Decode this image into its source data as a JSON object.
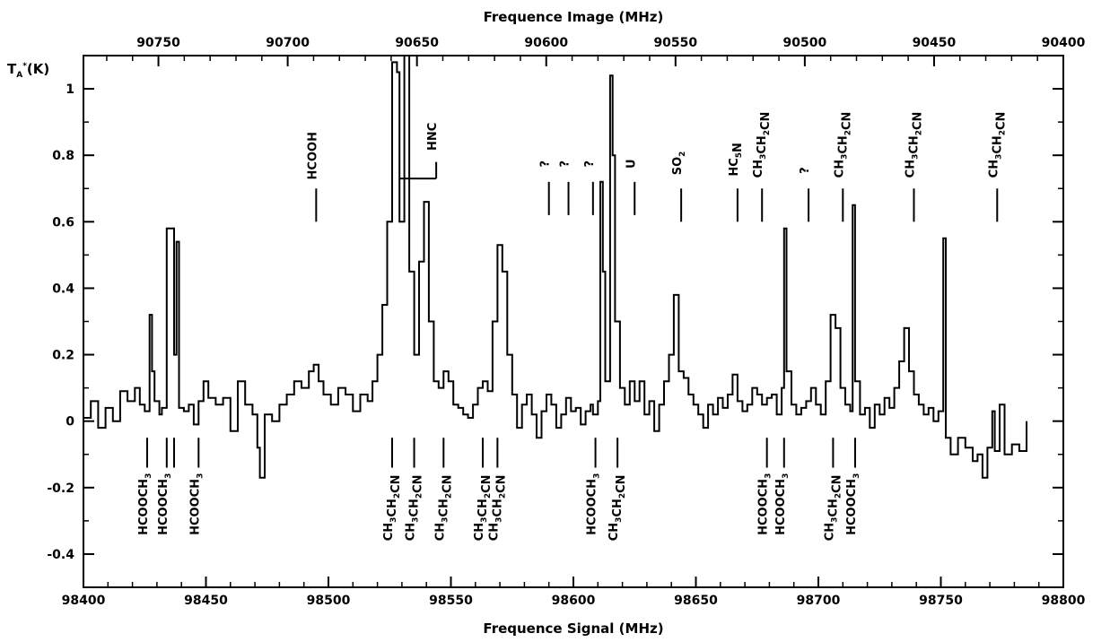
{
  "chart_data": {
    "type": "line",
    "xlabel": "Frequence Signal (MHz)",
    "x2label": "Frequence Image (MHz)",
    "ylabel": "T_A*(K)",
    "xlim": [
      98400,
      98800
    ],
    "x2lim": [
      90779,
      90400
    ],
    "ylim": [
      -0.5,
      1.1
    ],
    "grid": false,
    "x_ticks": [
      98400,
      98450,
      98500,
      98550,
      98600,
      98650,
      98700,
      98750,
      98800
    ],
    "x2_ticks": [
      90750,
      90700,
      90650,
      90600,
      90550,
      90500,
      90450,
      90400
    ],
    "y_ticks": [
      -0.4,
      -0.2,
      0,
      0.2,
      0.4,
      0.6,
      0.8,
      1
    ],
    "y_tick_labels": [
      "-0.4",
      "-0.2",
      "0",
      "0.2",
      "0.4",
      "0.6",
      "0.8",
      "1"
    ],
    "series": [
      {
        "values": [
          [
            98400,
            0.01
          ],
          [
            98403,
            0.06
          ],
          [
            98406,
            -0.02
          ],
          [
            98409,
            0.04
          ],
          [
            98412,
            0.0
          ],
          [
            98415,
            0.09
          ],
          [
            98418,
            0.06
          ],
          [
            98421,
            0.1
          ],
          [
            98423,
            0.05
          ],
          [
            98425,
            0.03
          ],
          [
            98427,
            0.32
          ],
          [
            98428,
            0.15
          ],
          [
            98429,
            0.06
          ],
          [
            98431,
            0.02
          ],
          [
            98432,
            0.04
          ],
          [
            98434,
            0.58
          ],
          [
            98436,
            0.58
          ],
          [
            98437,
            0.2
          ],
          [
            98438,
            0.54
          ],
          [
            98439,
            0.04
          ],
          [
            98441,
            0.03
          ],
          [
            98443,
            0.05
          ],
          [
            98445,
            -0.01
          ],
          [
            98447,
            0.06
          ],
          [
            98449,
            0.12
          ],
          [
            98451,
            0.07
          ],
          [
            98454,
            0.05
          ],
          [
            98457,
            0.07
          ],
          [
            98460,
            -0.03
          ],
          [
            98463,
            0.12
          ],
          [
            98466,
            0.05
          ],
          [
            98469,
            0.02
          ],
          [
            98471,
            -0.08
          ],
          [
            98472,
            -0.17
          ],
          [
            98474,
            0.02
          ],
          [
            98477,
            0.0
          ],
          [
            98480,
            0.05
          ],
          [
            98483,
            0.08
          ],
          [
            98486,
            0.12
          ],
          [
            98489,
            0.1
          ],
          [
            98492,
            0.15
          ],
          [
            98494,
            0.17
          ],
          [
            98496,
            0.12
          ],
          [
            98498,
            0.08
          ],
          [
            98501,
            0.05
          ],
          [
            98504,
            0.1
          ],
          [
            98507,
            0.08
          ],
          [
            98510,
            0.03
          ],
          [
            98513,
            0.08
          ],
          [
            98516,
            0.06
          ],
          [
            98518,
            0.12
          ],
          [
            98520,
            0.2
          ],
          [
            98522,
            0.35
          ],
          [
            98524,
            0.6
          ],
          [
            98526,
            1.08
          ],
          [
            98528,
            1.05
          ],
          [
            98529,
            0.6
          ],
          [
            98531,
            1.1
          ],
          [
            98533,
            0.45
          ],
          [
            98535,
            0.2
          ],
          [
            98537,
            0.48
          ],
          [
            98539,
            0.66
          ],
          [
            98541,
            0.3
          ],
          [
            98543,
            0.12
          ],
          [
            98545,
            0.1
          ],
          [
            98547,
            0.15
          ],
          [
            98549,
            0.12
          ],
          [
            98551,
            0.05
          ],
          [
            98553,
            0.04
          ],
          [
            98555,
            0.02
          ],
          [
            98557,
            0.01
          ],
          [
            98559,
            0.05
          ],
          [
            98561,
            0.1
          ],
          [
            98563,
            0.12
          ],
          [
            98565,
            0.09
          ],
          [
            98567,
            0.3
          ],
          [
            98569,
            0.53
          ],
          [
            98571,
            0.45
          ],
          [
            98573,
            0.2
          ],
          [
            98575,
            0.08
          ],
          [
            98577,
            -0.02
          ],
          [
            98579,
            0.05
          ],
          [
            98581,
            0.08
          ],
          [
            98583,
            0.02
          ],
          [
            98585,
            -0.05
          ],
          [
            98587,
            0.03
          ],
          [
            98589,
            0.08
          ],
          [
            98591,
            0.05
          ],
          [
            98593,
            -0.02
          ],
          [
            98595,
            0.02
          ],
          [
            98597,
            0.07
          ],
          [
            98599,
            0.03
          ],
          [
            98601,
            0.04
          ],
          [
            98603,
            -0.01
          ],
          [
            98605,
            0.03
          ],
          [
            98607,
            0.05
          ],
          [
            98608,
            0.02
          ],
          [
            98610,
            0.06
          ],
          [
            98611,
            0.72
          ],
          [
            98612,
            0.45
          ],
          [
            98613,
            0.12
          ],
          [
            98615,
            1.04
          ],
          [
            98616,
            0.8
          ],
          [
            98617,
            0.3
          ],
          [
            98619,
            0.1
          ],
          [
            98621,
            0.05
          ],
          [
            98623,
            0.12
          ],
          [
            98625,
            0.06
          ],
          [
            98627,
            0.12
          ],
          [
            98629,
            0.02
          ],
          [
            98631,
            0.06
          ],
          [
            98633,
            -0.03
          ],
          [
            98635,
            0.05
          ],
          [
            98637,
            0.12
          ],
          [
            98639,
            0.2
          ],
          [
            98641,
            0.38
          ],
          [
            98643,
            0.15
          ],
          [
            98645,
            0.13
          ],
          [
            98647,
            0.08
          ],
          [
            98649,
            0.05
          ],
          [
            98651,
            0.02
          ],
          [
            98653,
            -0.02
          ],
          [
            98655,
            0.05
          ],
          [
            98657,
            0.02
          ],
          [
            98659,
            0.07
          ],
          [
            98661,
            0.04
          ],
          [
            98663,
            0.08
          ],
          [
            98665,
            0.14
          ],
          [
            98667,
            0.06
          ],
          [
            98669,
            0.03
          ],
          [
            98671,
            0.05
          ],
          [
            98673,
            0.1
          ],
          [
            98675,
            0.08
          ],
          [
            98677,
            0.05
          ],
          [
            98679,
            0.07
          ],
          [
            98681,
            0.08
          ],
          [
            98683,
            0.02
          ],
          [
            98685,
            0.1
          ],
          [
            98686,
            0.58
          ],
          [
            98687,
            0.15
          ],
          [
            98689,
            0.05
          ],
          [
            98691,
            0.02
          ],
          [
            98693,
            0.04
          ],
          [
            98695,
            0.06
          ],
          [
            98697,
            0.1
          ],
          [
            98699,
            0.05
          ],
          [
            98701,
            0.02
          ],
          [
            98703,
            0.12
          ],
          [
            98705,
            0.32
          ],
          [
            98707,
            0.28
          ],
          [
            98709,
            0.1
          ],
          [
            98711,
            0.05
          ],
          [
            98713,
            0.03
          ],
          [
            98714,
            0.65
          ],
          [
            98715,
            0.12
          ],
          [
            98717,
            0.02
          ],
          [
            98719,
            0.04
          ],
          [
            98721,
            -0.02
          ],
          [
            98723,
            0.05
          ],
          [
            98725,
            0.02
          ],
          [
            98727,
            0.07
          ],
          [
            98729,
            0.04
          ],
          [
            98731,
            0.1
          ],
          [
            98733,
            0.18
          ],
          [
            98735,
            0.28
          ],
          [
            98737,
            0.15
          ],
          [
            98739,
            0.08
          ],
          [
            98741,
            0.05
          ],
          [
            98743,
            0.02
          ],
          [
            98745,
            0.04
          ],
          [
            98747,
            0.0
          ],
          [
            98749,
            0.03
          ],
          [
            98751,
            0.55
          ],
          [
            98752,
            -0.05
          ],
          [
            98754,
            -0.1
          ],
          [
            98757,
            -0.05
          ],
          [
            98760,
            -0.08
          ],
          [
            98763,
            -0.12
          ],
          [
            98765,
            -0.1
          ],
          [
            98767,
            -0.17
          ],
          [
            98769,
            -0.08
          ],
          [
            98771,
            0.03
          ],
          [
            98772,
            -0.09
          ],
          [
            98774,
            0.05
          ],
          [
            98776,
            -0.1
          ],
          [
            98779,
            -0.07
          ],
          [
            98782,
            -0.09
          ],
          [
            98785,
            0.0
          ]
        ]
      }
    ],
    "annotations_above": [
      {
        "x": 98495,
        "label": "HCOOH",
        "top": 0.8,
        "tick": [
          0.6,
          0.7
        ]
      },
      {
        "x": 98544,
        "label": "HNC",
        "top": 0.88,
        "tick": [
          0.73,
          0.78
        ]
      },
      {
        "x": 98590,
        "label": "?",
        "top": 0.78,
        "tick": [
          0.62,
          0.72
        ]
      },
      {
        "x": 98598,
        "label": "?",
        "top": 0.78,
        "tick": [
          0.62,
          0.72
        ]
      },
      {
        "x": 98608,
        "label": "?",
        "top": 0.78,
        "tick": [
          0.62,
          0.72
        ]
      },
      {
        "x": 98625,
        "label": "U",
        "top": 0.78,
        "tick": [
          0.62,
          0.72
        ]
      },
      {
        "x": 98644,
        "label": "SO₂",
        "top": 0.78,
        "tick": [
          0.6,
          0.7
        ]
      },
      {
        "x": 98667,
        "label": "HC₅N",
        "top": 0.78,
        "tick": [
          0.6,
          0.7
        ]
      },
      {
        "x": 98677,
        "label": "CH₃CH₂CN",
        "top": 0.98,
        "tick": [
          0.6,
          0.7
        ]
      },
      {
        "x": 98696,
        "label": "?",
        "top": 0.78,
        "tick": [
          0.6,
          0.7
        ]
      },
      {
        "x": 98710,
        "label": "CH₃CH₂CN",
        "top": 0.98,
        "tick": [
          0.6,
          0.7
        ]
      },
      {
        "x": 98739,
        "label": "CH₃CH₂CN",
        "top": 0.98,
        "tick": [
          0.6,
          0.7
        ]
      },
      {
        "x": 98773,
        "label": "CH₃CH₂CN",
        "top": 0.98,
        "tick": [
          0.6,
          0.7
        ]
      }
    ],
    "annotations_below": [
      {
        "x": 98426,
        "label": "HCOOCH₃",
        "tick": [
          -0.05,
          -0.14
        ]
      },
      {
        "x": 98434,
        "label": "HCOOCH₃",
        "tick": [
          -0.05,
          -0.14
        ]
      },
      {
        "x": 98437,
        "label": "",
        "tick": [
          -0.05,
          -0.14
        ]
      },
      {
        "x": 98447,
        "label": "HCOOCH₃",
        "tick": [
          -0.05,
          -0.14
        ]
      },
      {
        "x": 98526,
        "label": "CH₃CH₂CN",
        "tick": [
          -0.05,
          -0.14
        ]
      },
      {
        "x": 98535,
        "label": "CH₃CH₂CN",
        "tick": [
          -0.05,
          -0.14
        ]
      },
      {
        "x": 98547,
        "label": "CH₃CH₂CN",
        "tick": [
          -0.05,
          -0.14
        ]
      },
      {
        "x": 98563,
        "label": "CH₃CH₂CN",
        "tick": [
          -0.05,
          -0.14
        ]
      },
      {
        "x": 98569,
        "label": "CH₃CH₂CN",
        "tick": [
          -0.05,
          -0.14
        ]
      },
      {
        "x": 98609,
        "label": "HCOOCH₃",
        "tick": [
          -0.05,
          -0.14
        ]
      },
      {
        "x": 98618,
        "label": "CH₃CH₂CN",
        "tick": [
          -0.05,
          -0.14
        ]
      },
      {
        "x": 98679,
        "label": "HCOOCH₃",
        "tick": [
          -0.05,
          -0.14
        ]
      },
      {
        "x": 98686,
        "label": "HCOOCH₃",
        "tick": [
          -0.05,
          -0.14
        ]
      },
      {
        "x": 98706,
        "label": "CH₃CH₂CN",
        "tick": [
          -0.05,
          -0.14
        ]
      },
      {
        "x": 98715,
        "label": "HCOOCH₃",
        "tick": [
          -0.05,
          -0.14
        ]
      }
    ]
  }
}
